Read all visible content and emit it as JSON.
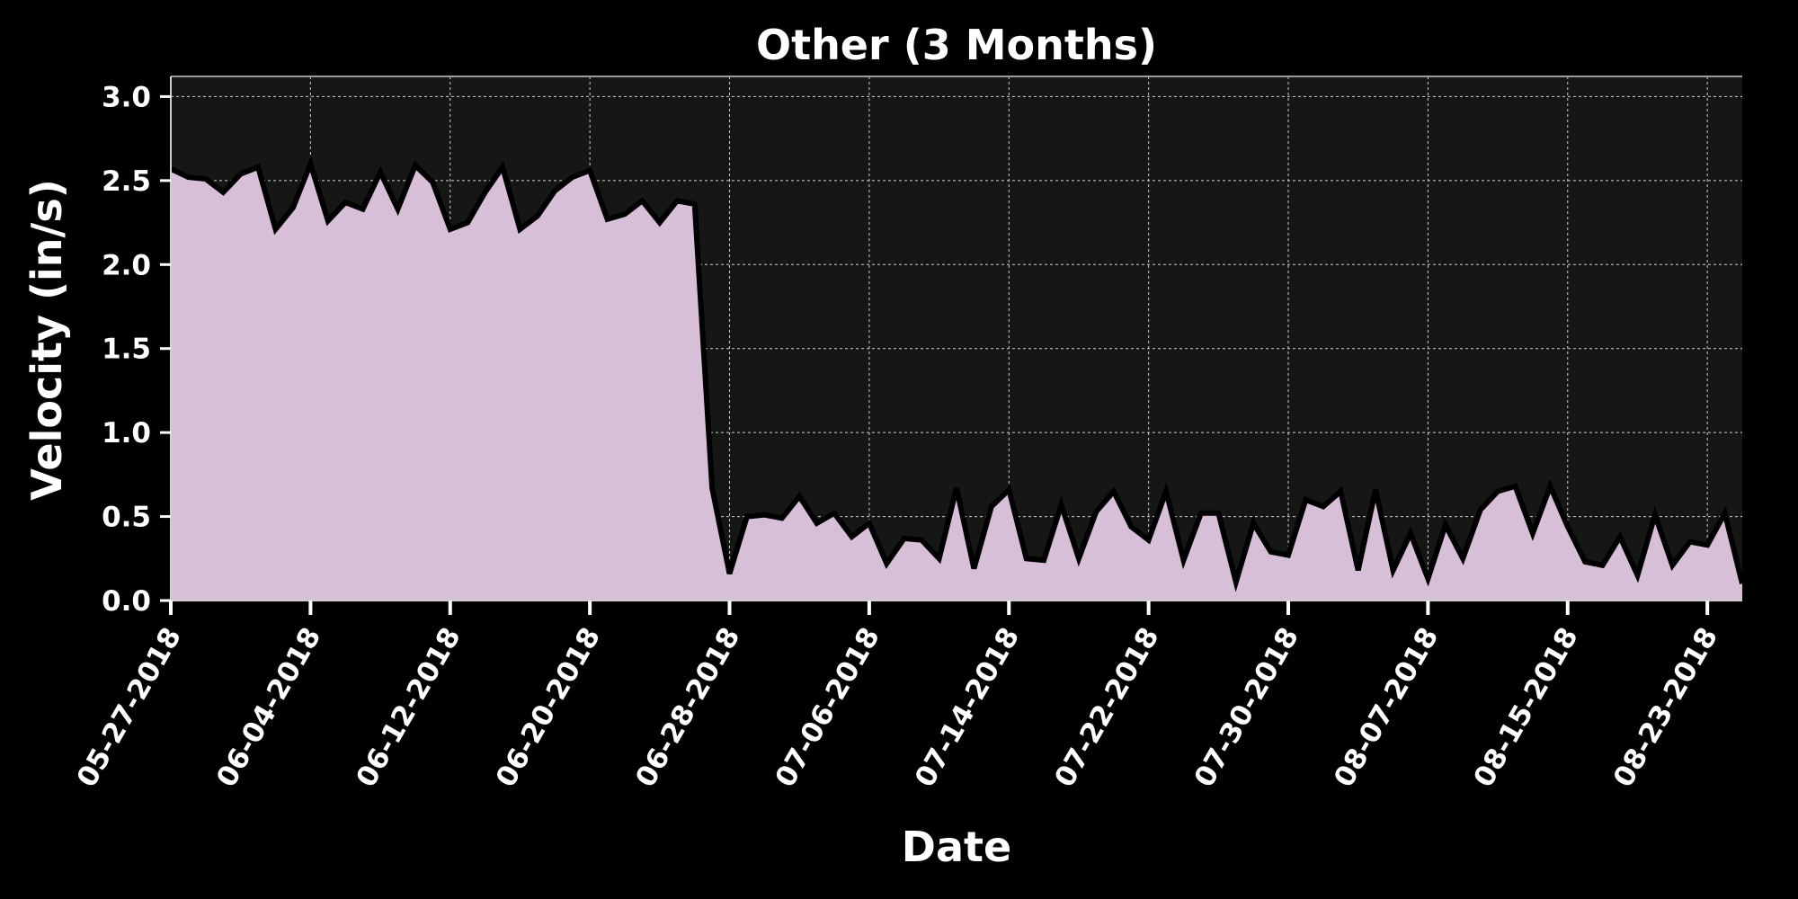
{
  "chart_data": {
    "type": "area",
    "title": "Other (3 Months)",
    "xlabel": "Date",
    "ylabel": "Velocity (in/s)",
    "ylim": [
      0,
      3.12
    ],
    "xlim": [
      "05-27-2018",
      "08-25-2018"
    ],
    "grid": true,
    "colors": {
      "background": "#000000",
      "plot_background": "#161616",
      "fill": "#d8bfd8",
      "line": "#000000",
      "grid": "#d0d0d0",
      "text": "#ffffff"
    },
    "yticks": [
      "0.0",
      "0.5",
      "1.0",
      "1.5",
      "2.0",
      "2.5",
      "3.0"
    ],
    "xticks": [
      "05-27-2018",
      "06-04-2018",
      "06-12-2018",
      "06-20-2018",
      "06-28-2018",
      "07-06-2018",
      "07-14-2018",
      "07-22-2018",
      "07-30-2018",
      "08-07-2018",
      "08-15-2018",
      "08-23-2018"
    ],
    "x": [
      "05-27-2018",
      "05-28-2018",
      "05-29-2018",
      "05-30-2018",
      "05-31-2018",
      "06-01-2018",
      "06-02-2018",
      "06-03-2018",
      "06-04-2018",
      "06-05-2018",
      "06-06-2018",
      "06-07-2018",
      "06-08-2018",
      "06-09-2018",
      "06-10-2018",
      "06-11-2018",
      "06-12-2018",
      "06-13-2018",
      "06-14-2018",
      "06-15-2018",
      "06-16-2018",
      "06-17-2018",
      "06-18-2018",
      "06-19-2018",
      "06-20-2018",
      "06-21-2018",
      "06-22-2018",
      "06-23-2018",
      "06-24-2018",
      "06-25-2018",
      "06-26-2018",
      "06-27-2018",
      "06-28-2018",
      "06-29-2018",
      "06-30-2018",
      "07-01-2018",
      "07-02-2018",
      "07-03-2018",
      "07-04-2018",
      "07-05-2018",
      "07-06-2018",
      "07-07-2018",
      "07-08-2018",
      "07-09-2018",
      "07-10-2018",
      "07-11-2018",
      "07-12-2018",
      "07-13-2018",
      "07-14-2018",
      "07-15-2018",
      "07-16-2018",
      "07-17-2018",
      "07-18-2018",
      "07-19-2018",
      "07-20-2018",
      "07-21-2018",
      "07-22-2018",
      "07-23-2018",
      "07-24-2018",
      "07-25-2018",
      "07-26-2018",
      "07-27-2018",
      "07-28-2018",
      "07-29-2018",
      "07-30-2018",
      "07-31-2018",
      "08-01-2018",
      "08-02-2018",
      "08-03-2018",
      "08-04-2018",
      "08-05-2018",
      "08-06-2018",
      "08-07-2018",
      "08-08-2018",
      "08-09-2018",
      "08-10-2018",
      "08-11-2018",
      "08-12-2018",
      "08-13-2018",
      "08-14-2018",
      "08-15-2018",
      "08-16-2018",
      "08-17-2018",
      "08-18-2018",
      "08-19-2018",
      "08-20-2018",
      "08-21-2018",
      "08-22-2018",
      "08-23-2018",
      "08-24-2018",
      "08-25-2018"
    ],
    "series": [
      {
        "values": [
          2.57,
          2.52,
          2.51,
          2.43,
          2.54,
          2.58,
          2.21,
          2.34,
          2.6,
          2.26,
          2.37,
          2.33,
          2.55,
          2.33,
          2.59,
          2.49,
          2.21,
          2.25,
          2.43,
          2.58,
          2.21,
          2.29,
          2.44,
          2.52,
          2.56,
          2.27,
          2.3,
          2.38,
          2.25,
          2.38,
          2.36,
          0.67,
          0.16,
          0.5,
          0.51,
          0.49,
          0.62,
          0.46,
          0.52,
          0.38,
          0.46,
          0.22,
          0.37,
          0.36,
          0.25,
          0.67,
          0.19,
          0.56,
          0.66,
          0.25,
          0.24,
          0.57,
          0.25,
          0.53,
          0.65,
          0.44,
          0.36,
          0.65,
          0.24,
          0.52,
          0.52,
          0.11,
          0.46,
          0.29,
          0.27,
          0.6,
          0.56,
          0.65,
          0.18,
          0.66,
          0.18,
          0.4,
          0.13,
          0.45,
          0.25,
          0.54,
          0.65,
          0.68,
          0.4,
          0.68,
          0.44,
          0.23,
          0.21,
          0.38,
          0.15,
          0.51,
          0.21,
          0.35,
          0.33,
          0.52,
          0.1
        ]
      }
    ]
  }
}
